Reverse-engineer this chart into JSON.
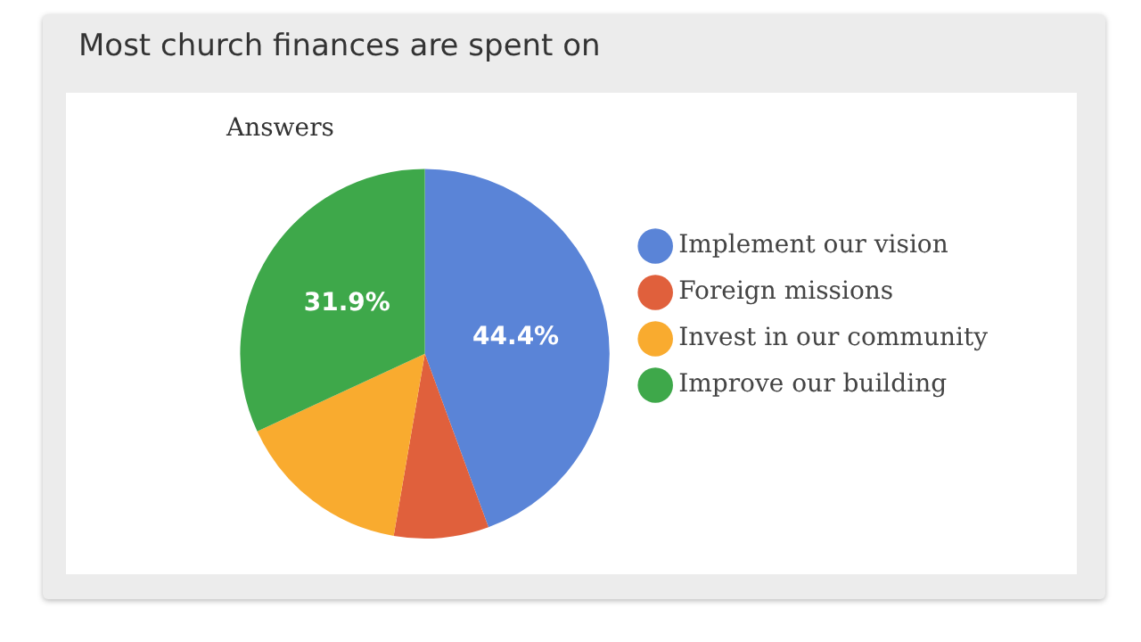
{
  "chart_data": {
    "type": "pie",
    "title": "Most church finances are spent on",
    "subtitle": "Answers",
    "categories": [
      "Implement our vision",
      "Foreign missions",
      "Invest in our community",
      "Improve our building"
    ],
    "values": [
      44.4,
      8.3,
      15.4,
      31.9
    ],
    "colors": [
      "#5a84d7",
      "#e0603c",
      "#f9ab2f",
      "#3ea84a"
    ],
    "value_labels": [
      "44.4%",
      null,
      null,
      "31.9%"
    ],
    "legend": "right"
  }
}
